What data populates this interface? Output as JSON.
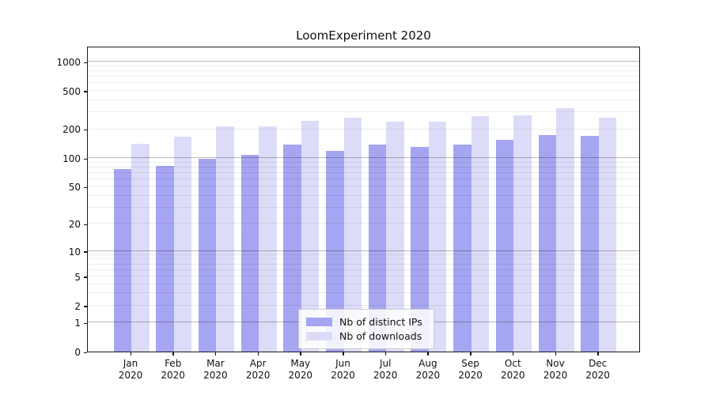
{
  "chart_data": {
    "type": "bar",
    "title": "LoomExperiment 2020",
    "categories": [
      "Jan 2020",
      "Feb 2020",
      "Mar 2020",
      "Apr 2020",
      "May 2020",
      "Jun 2020",
      "Jul 2020",
      "Aug 2020",
      "Sep 2020",
      "Oct 2020",
      "Nov 2020",
      "Dec 2020"
    ],
    "series": [
      {
        "name": "Nb of distinct IPs",
        "color": "#a5a5f1",
        "values": [
          77,
          82,
          99,
          108,
          139,
          119,
          137,
          130,
          137,
          154,
          172,
          171
        ]
      },
      {
        "name": "Nb of downloads",
        "color": "#dcdcf9",
        "values": [
          141,
          166,
          214,
          213,
          243,
          262,
          240,
          241,
          272,
          279,
          333,
          261
        ]
      }
    ],
    "xlabel": "",
    "ylabel": "",
    "yscale": "log1p",
    "ylim": [
      0,
      1465
    ],
    "yticks": [
      0,
      1,
      2,
      5,
      10,
      20,
      50,
      100,
      200,
      500,
      1000
    ],
    "grid": "horizontal, major and minor",
    "legend_position": "lower center, inside plot"
  }
}
